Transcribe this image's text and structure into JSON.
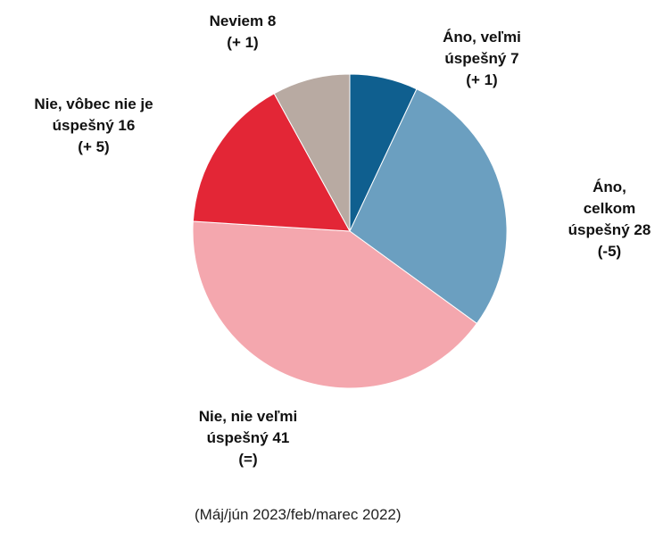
{
  "chart_data": {
    "type": "pie",
    "categories": [
      "Áno, veľmi úspešný",
      "Áno, celkom úspešný",
      "Nie, nie veľmi úspešný",
      "Nie, vôbec nie je úspešný",
      "Neviem"
    ],
    "values": [
      7,
      28,
      41,
      16,
      8
    ],
    "changes": [
      "(+ 1)",
      "(-5)",
      "(=)",
      "(+ 5)",
      "(+ 1)"
    ],
    "colors": [
      "#0f5f8f",
      "#6b9fc0",
      "#f4a7ae",
      "#e32636",
      "#b8aaa2"
    ],
    "note": "(Máj/jún 2023/feb/marec 2022)"
  }
}
